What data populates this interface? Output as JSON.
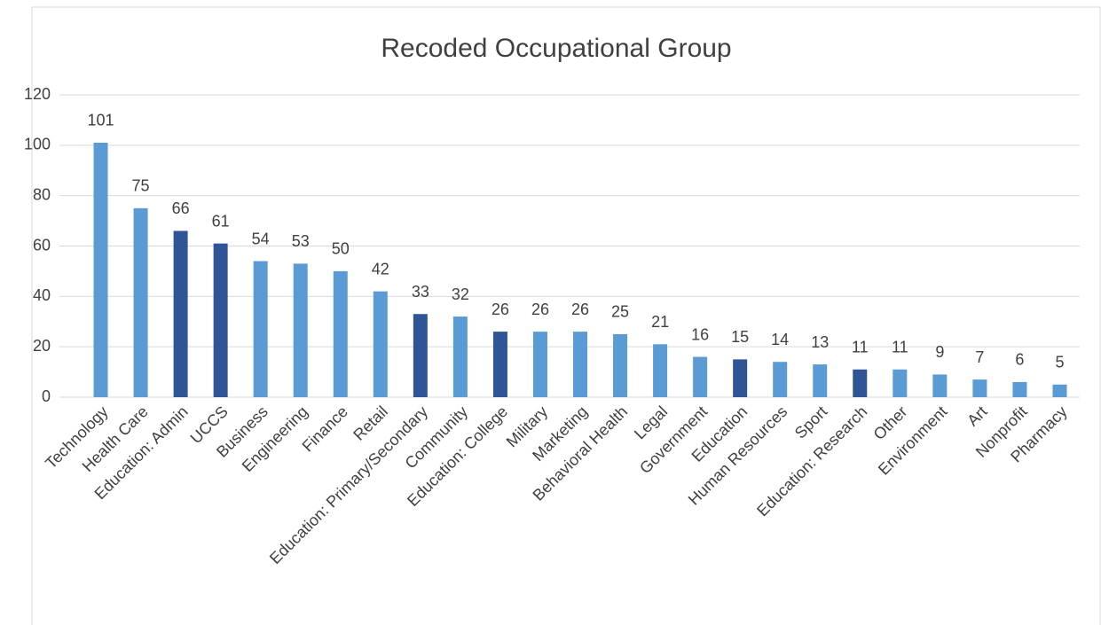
{
  "chart_data": {
    "type": "bar",
    "title": "Recoded Occupational Group",
    "categories": [
      "Technology",
      "Health Care",
      "Education: Admin",
      "UCCS",
      "Business",
      "Engineering",
      "Finance",
      "Retail",
      "Education: Primary/Secondary",
      "Community",
      "Education: College",
      "Military",
      "Marketing",
      "Behavioral Health",
      "Legal",
      "Government",
      "Education",
      "Human Resources",
      "Sport",
      "Education: Research",
      "Other",
      "Environment",
      "Art",
      "Nonprofit",
      "Pharmacy"
    ],
    "values": [
      101,
      75,
      66,
      61,
      54,
      53,
      50,
      42,
      33,
      32,
      26,
      26,
      26,
      25,
      21,
      16,
      15,
      14,
      13,
      11,
      11,
      9,
      7,
      6,
      5
    ],
    "colors": [
      "#5b9bd5",
      "#5b9bd5",
      "#2f5597",
      "#2f5597",
      "#5b9bd5",
      "#5b9bd5",
      "#5b9bd5",
      "#5b9bd5",
      "#2f5597",
      "#5b9bd5",
      "#2f5597",
      "#5b9bd5",
      "#5b9bd5",
      "#5b9bd5",
      "#5b9bd5",
      "#5b9bd5",
      "#2f5597",
      "#5b9bd5",
      "#5b9bd5",
      "#2f5597",
      "#5b9bd5",
      "#5b9bd5",
      "#5b9bd5",
      "#5b9bd5",
      "#5b9bd5"
    ],
    "ylim": [
      0,
      120
    ],
    "yticks": [
      0,
      20,
      40,
      60,
      80,
      100,
      120
    ],
    "grid": true
  }
}
